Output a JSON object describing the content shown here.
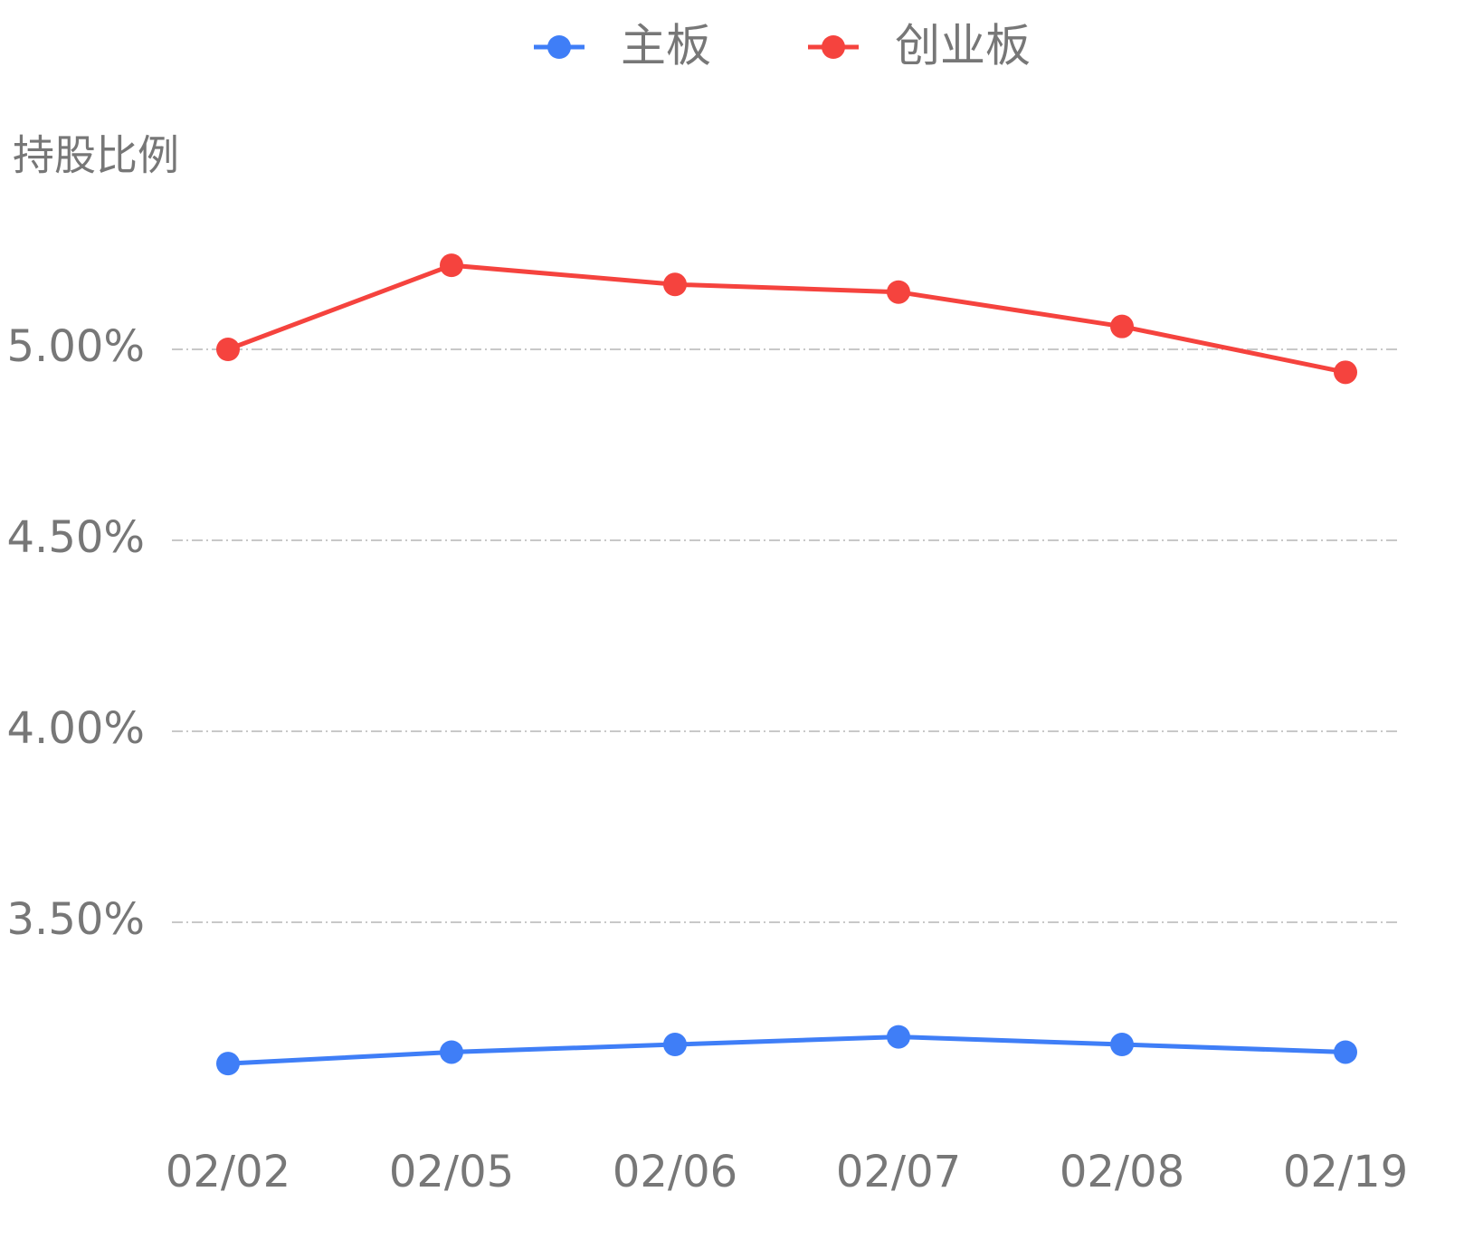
{
  "chart_data": {
    "type": "line",
    "y_axis_title": "持股比例",
    "categories": [
      "02/02",
      "02/05",
      "02/06",
      "02/07",
      "02/08",
      "02/19"
    ],
    "series": [
      {
        "name": "主板",
        "color": "#3f7ef7",
        "values": [
          3.13,
          3.16,
          3.18,
          3.2,
          3.18,
          3.16
        ]
      },
      {
        "name": "创业板",
        "color": "#f5433e",
        "values": [
          5.0,
          5.22,
          5.17,
          5.15,
          5.06,
          4.94
        ]
      }
    ],
    "ylim": [
      3.0,
      5.5
    ],
    "yticks": [
      {
        "value": 3.5,
        "label": "3.50%"
      },
      {
        "value": 4.0,
        "label": "4.00%"
      },
      {
        "value": 4.5,
        "label": "4.50%"
      },
      {
        "value": 5.0,
        "label": "5.00%"
      }
    ],
    "grid": true,
    "legend": "top"
  }
}
